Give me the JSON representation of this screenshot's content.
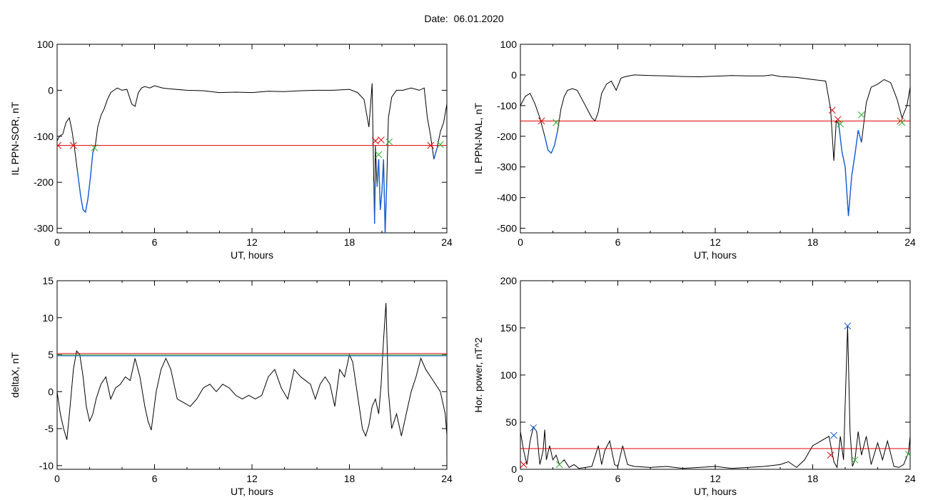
{
  "title": {
    "label": "Date:",
    "date": "06.01.2020"
  },
  "colors": {
    "trace": "#000000",
    "selection": "#1560d6",
    "threshold_red": "#e00000",
    "threshold_blue": "#1560d6",
    "threshold_green": "#30b030",
    "marker_red": "#e00000",
    "marker_green": "#30b030",
    "marker_blue": "#1560d6"
  },
  "chart_data": [
    {
      "id": "sor",
      "type": "line",
      "xlabel": "UT, hours",
      "ylabel": "IL PPN-SOR, nT",
      "xlim": [
        0,
        24
      ],
      "ylim": [
        -310,
        100
      ],
      "xticks": [
        0,
        6,
        12,
        18,
        24
      ],
      "yticks": [
        100,
        0,
        -100,
        -200,
        -300
      ],
      "series": [
        {
          "x": [
            0,
            0.15,
            0.35,
            0.55,
            0.75,
            0.9,
            1.05,
            1.25,
            1.45,
            1.6,
            1.75,
            1.9,
            2.05,
            2.2,
            2.35,
            2.5,
            2.7,
            2.9,
            3.1,
            3.3,
            3.5,
            3.7,
            4.0,
            4.3,
            4.6,
            4.8,
            5.0,
            5.2,
            5.4,
            5.7,
            6.0,
            6.5,
            7,
            8,
            9,
            10,
            11,
            12,
            13,
            14,
            15,
            16,
            17,
            18,
            18.5,
            18.9,
            19.2,
            19.4,
            19.5,
            19.55,
            19.6,
            19.7,
            19.8,
            19.9,
            20.0,
            20.1,
            20.2,
            20.3,
            20.4,
            20.6,
            20.9,
            21.3,
            21.8,
            22.3,
            22.6,
            22.8,
            23.0,
            23.2,
            23.4,
            23.6,
            23.8,
            24.0
          ],
          "y": [
            -110,
            -100,
            -95,
            -70,
            -60,
            -85,
            -120,
            -175,
            -230,
            -260,
            -265,
            -235,
            -190,
            -135,
            -120,
            -80,
            -55,
            -40,
            -20,
            -5,
            0,
            5,
            0,
            2,
            -30,
            -35,
            -5,
            5,
            8,
            5,
            10,
            5,
            3,
            0,
            -1,
            -5,
            -4,
            -5,
            -2,
            -3,
            -1,
            0,
            0,
            2,
            -5,
            -20,
            -80,
            15,
            -200,
            -290,
            -120,
            -210,
            -150,
            -260,
            -220,
            -150,
            -310,
            -200,
            -60,
            -15,
            0,
            0,
            5,
            0,
            5,
            -60,
            -100,
            -150,
            -125,
            -90,
            -70,
            -30
          ]
        }
      ],
      "threshold": -120,
      "markers_red": [
        {
          "x": 0.05,
          "y": -120
        },
        {
          "x": 1.0,
          "y": -120
        },
        {
          "x": 19.6,
          "y": -110
        },
        {
          "x": 19.95,
          "y": -108
        },
        {
          "x": 23.0,
          "y": -120
        }
      ],
      "markers_green": [
        {
          "x": 2.3,
          "y": -125
        },
        {
          "x": 19.8,
          "y": -140
        },
        {
          "x": 20.45,
          "y": -112
        },
        {
          "x": 23.6,
          "y": -118
        }
      ]
    },
    {
      "id": "nal",
      "type": "line",
      "xlabel": "UT, hours",
      "ylabel": "IL PPN-NAL, nT",
      "xlim": [
        0,
        24
      ],
      "ylim": [
        -515,
        100
      ],
      "xticks": [
        0,
        6,
        12,
        18,
        24
      ],
      "yticks": [
        100,
        0,
        -100,
        -200,
        -300,
        -400,
        -500
      ],
      "series": [
        {
          "x": [
            0,
            0.3,
            0.6,
            0.9,
            1.2,
            1.5,
            1.7,
            1.9,
            2.1,
            2.3,
            2.5,
            2.7,
            2.9,
            3.2,
            3.5,
            3.8,
            4.1,
            4.4,
            4.6,
            4.8,
            5.0,
            5.3,
            5.6,
            5.9,
            6.2,
            6.5,
            7,
            8,
            9,
            10,
            11,
            12,
            13,
            14,
            15,
            15.5,
            16,
            17,
            18,
            18.8,
            19.1,
            19.3,
            19.45,
            19.6,
            19.8,
            20.0,
            20.2,
            20.4,
            20.6,
            20.8,
            21.0,
            21.3,
            21.6,
            22.0,
            22.4,
            22.8,
            23.2,
            23.5,
            23.8,
            24.0
          ],
          "y": [
            -100,
            -70,
            -60,
            -95,
            -140,
            -200,
            -245,
            -255,
            -230,
            -180,
            -110,
            -70,
            -50,
            -45,
            -50,
            -80,
            -110,
            -140,
            -150,
            -120,
            -60,
            -30,
            -20,
            -50,
            -10,
            -5,
            0,
            -2,
            -3,
            -5,
            -6,
            -4,
            -2,
            -3,
            -3,
            0,
            -5,
            -8,
            -15,
            -20,
            -110,
            -280,
            -150,
            -160,
            -250,
            -300,
            -460,
            -330,
            -260,
            -180,
            -220,
            -90,
            -40,
            -30,
            -15,
            -25,
            -80,
            -140,
            -100,
            -40
          ]
        }
      ],
      "threshold": -150,
      "markers_red": [
        {
          "x": 1.3,
          "y": -150
        },
        {
          "x": 19.2,
          "y": -115
        },
        {
          "x": 19.55,
          "y": -145
        },
        {
          "x": 23.4,
          "y": -150
        }
      ],
      "markers_green": [
        {
          "x": 2.2,
          "y": -155
        },
        {
          "x": 19.7,
          "y": -160
        },
        {
          "x": 21.0,
          "y": -130
        },
        {
          "x": 23.5,
          "y": -155
        }
      ]
    },
    {
      "id": "deltax",
      "type": "line",
      "xlabel": "UT, hours",
      "ylabel": "deltaX, nT",
      "xlim": [
        0,
        24
      ],
      "ylim": [
        -10.5,
        15
      ],
      "xticks": [
        0,
        6,
        12,
        18,
        24
      ],
      "yticks": [
        15,
        10,
        5,
        0,
        -5,
        -10
      ],
      "series": [
        {
          "x": [
            0,
            0.2,
            0.4,
            0.6,
            0.8,
            1.0,
            1.2,
            1.4,
            1.6,
            1.8,
            2.0,
            2.2,
            2.4,
            2.7,
            3.0,
            3.3,
            3.6,
            3.9,
            4.2,
            4.5,
            4.8,
            5.1,
            5.4,
            5.6,
            5.8,
            6.1,
            6.4,
            6.7,
            7.0,
            7.4,
            7.8,
            8.2,
            8.6,
            9.0,
            9.4,
            9.8,
            10.2,
            10.6,
            11.0,
            11.4,
            11.8,
            12.2,
            12.6,
            13.0,
            13.4,
            13.8,
            14.2,
            14.6,
            15.0,
            15.3,
            15.6,
            15.9,
            16.2,
            16.5,
            16.8,
            17.1,
            17.4,
            17.7,
            18.0,
            18.2,
            18.4,
            18.6,
            18.8,
            19.0,
            19.2,
            19.4,
            19.6,
            19.8,
            19.95,
            20.1,
            20.25,
            20.4,
            20.6,
            20.9,
            21.2,
            21.5,
            21.8,
            22.1,
            22.4,
            22.7,
            23.0,
            23.3,
            23.6,
            23.9,
            24.0
          ],
          "y": [
            0,
            -3,
            -5,
            -6.5,
            -2,
            3,
            5.5,
            5,
            2,
            -2,
            -4,
            -3,
            -1,
            1,
            2,
            -1,
            0.5,
            1,
            2,
            1.5,
            4.5,
            2,
            -2,
            -4,
            -5.2,
            0,
            3,
            4.5,
            3,
            -1,
            -1.5,
            -2,
            -1,
            0.5,
            1,
            0,
            1,
            0.5,
            -0.5,
            -1,
            -0.5,
            -1,
            -0.5,
            2,
            3,
            0.5,
            -1,
            3,
            2,
            1.5,
            1,
            -1,
            1,
            2,
            1,
            -2,
            3,
            2,
            5,
            4,
            1,
            -2,
            -5,
            -6,
            -4.5,
            -2,
            -1,
            -3,
            1,
            7,
            12,
            0,
            -5,
            -3,
            -6,
            -3,
            0,
            2,
            4.5,
            3,
            2,
            1,
            0,
            -3,
            -5.8
          ]
        }
      ],
      "thresholds": [
        {
          "color": "red",
          "value": 5.15
        },
        {
          "color": "green",
          "value": 4.95
        },
        {
          "color": "blue",
          "value": 4.85
        }
      ]
    },
    {
      "id": "power",
      "type": "line",
      "xlabel": "UT, hours",
      "ylabel": "Hor. power, nT^2",
      "xlim": [
        0,
        24
      ],
      "ylim": [
        0,
        200
      ],
      "xticks": [
        0,
        6,
        12,
        18,
        24
      ],
      "yticks": [
        200,
        150,
        100,
        50,
        0
      ],
      "series": [
        {
          "x": [
            0,
            0.2,
            0.4,
            0.6,
            0.8,
            1.0,
            1.2,
            1.4,
            1.5,
            1.6,
            1.8,
            2.0,
            2.2,
            2.4,
            2.7,
            3.0,
            3.3,
            3.6,
            4.0,
            4.4,
            4.8,
            5.0,
            5.2,
            5.5,
            5.8,
            6.0,
            6.3,
            6.6,
            7.0,
            8,
            9,
            10,
            11,
            12,
            13,
            14,
            15,
            16,
            16.5,
            17,
            17.5,
            18.0,
            18.5,
            19.0,
            19.3,
            19.5,
            19.7,
            19.9,
            20.0,
            20.15,
            20.3,
            20.45,
            20.6,
            20.8,
            21.0,
            21.3,
            21.6,
            22.0,
            22.3,
            22.6,
            23.0,
            23.3,
            23.6,
            23.9,
            24.0
          ],
          "y": [
            40,
            20,
            5,
            30,
            45,
            40,
            5,
            20,
            42,
            10,
            25,
            10,
            15,
            5,
            10,
            2,
            5,
            1,
            2,
            3,
            25,
            5,
            20,
            30,
            5,
            3,
            25,
            5,
            3,
            2,
            3,
            1,
            2,
            3,
            1,
            2,
            3,
            5,
            8,
            2,
            10,
            25,
            30,
            35,
            8,
            2,
            35,
            10,
            70,
            152,
            40,
            3,
            10,
            40,
            15,
            35,
            5,
            28,
            10,
            30,
            3,
            2,
            5,
            18,
            35
          ]
        }
      ],
      "threshold": 22,
      "markers_blue": [
        {
          "x": 0.8,
          "y": 44
        },
        {
          "x": 19.3,
          "y": 36
        },
        {
          "x": 20.15,
          "y": 152
        }
      ],
      "markers_red": [
        {
          "x": 0.2,
          "y": 5
        },
        {
          "x": 19.1,
          "y": 15
        }
      ],
      "markers_green": [
        {
          "x": 2.4,
          "y": 5
        },
        {
          "x": 20.6,
          "y": 10
        },
        {
          "x": 23.9,
          "y": 16
        }
      ]
    }
  ]
}
